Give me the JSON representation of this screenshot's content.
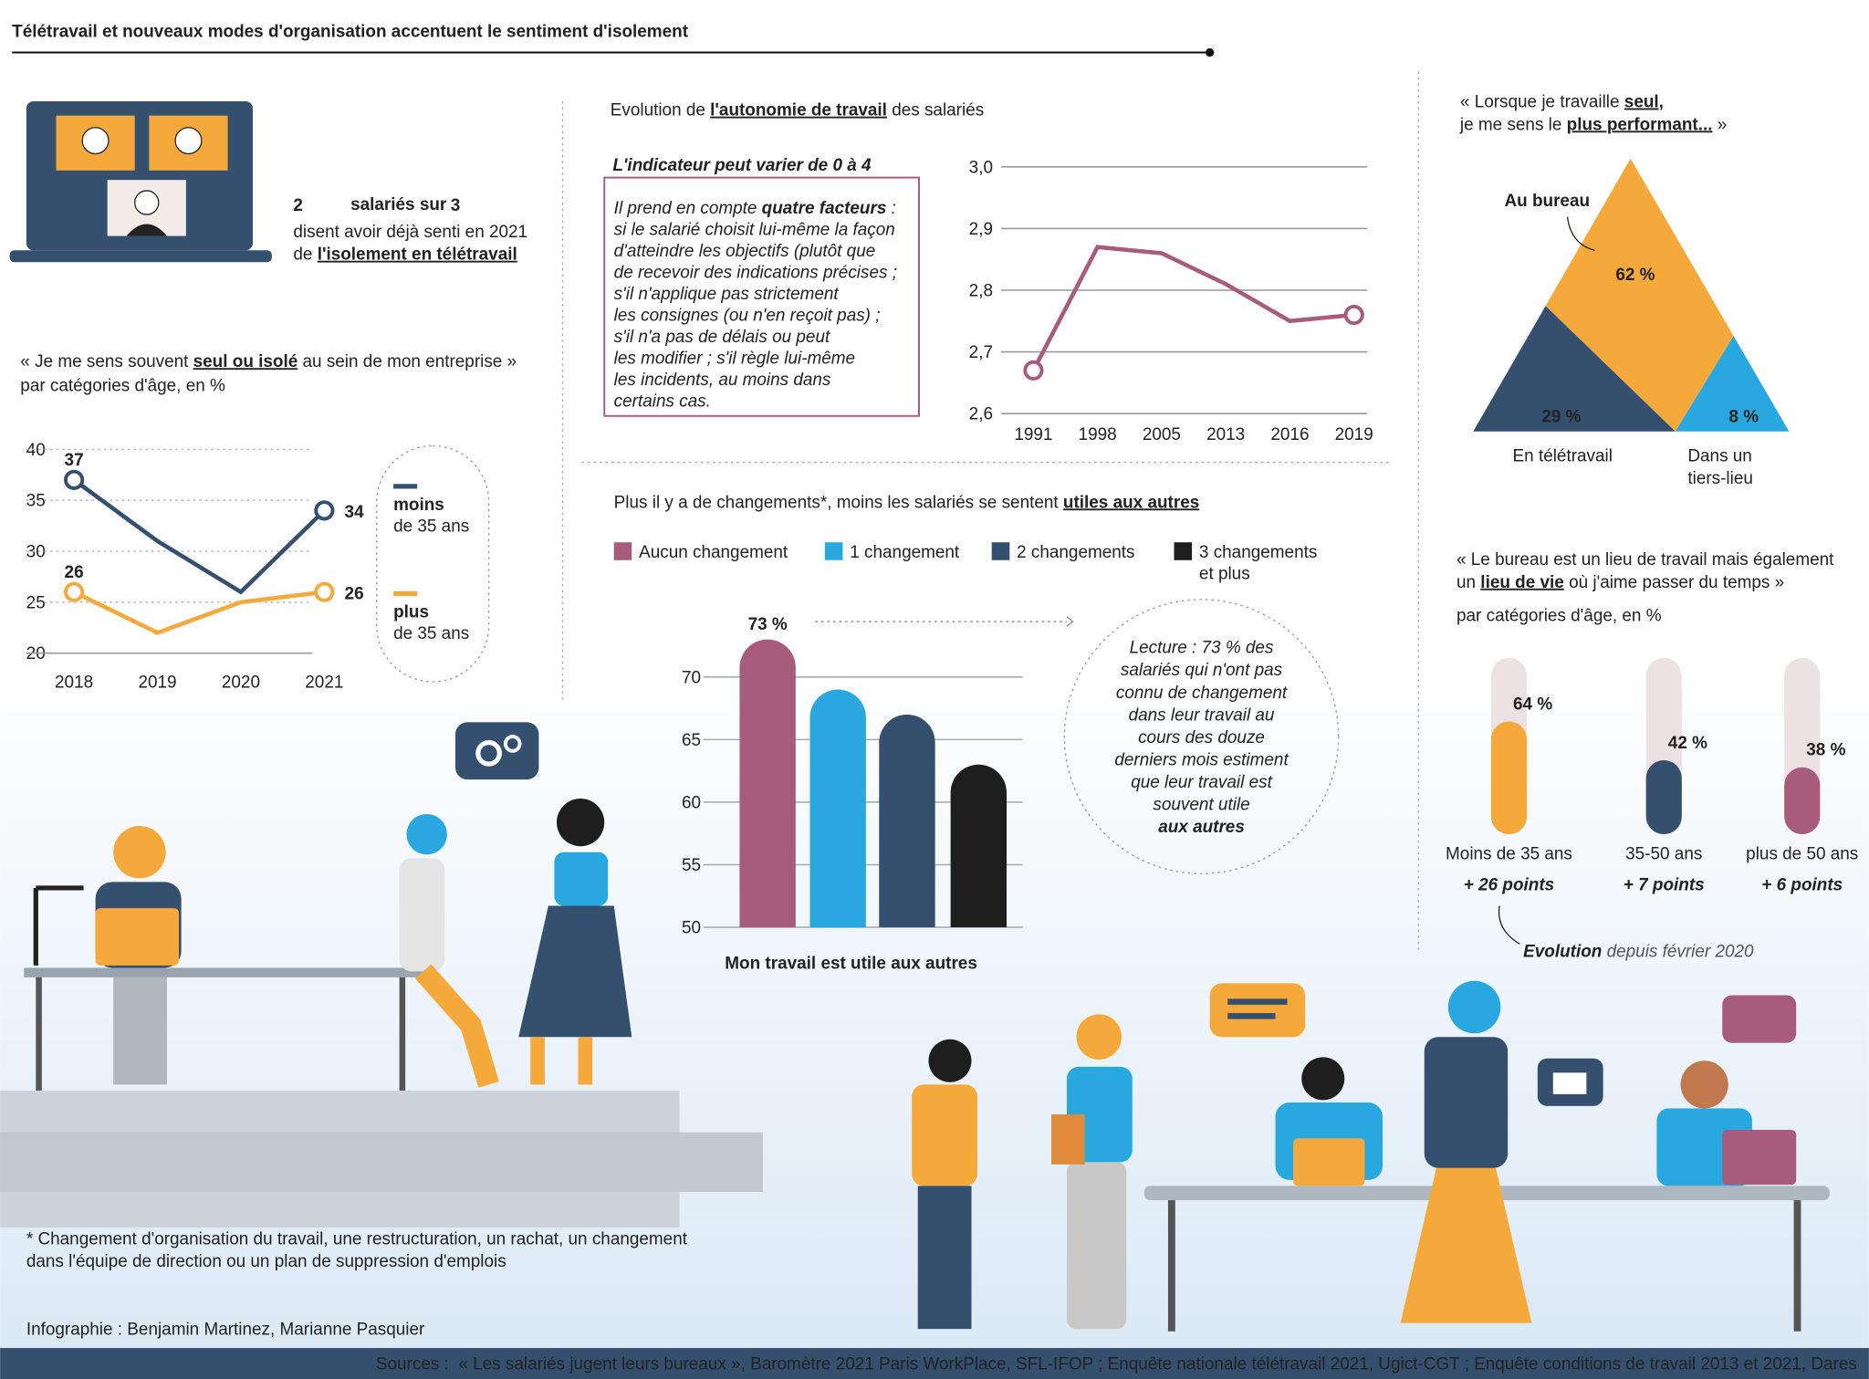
{
  "title": "Télétravail et nouveaux modes d'organisation accentuent le sentiment d'isolement",
  "stat": {
    "count": 2,
    "of_text": "salariés sur",
    "total": 3,
    "text": "disent avoir déjà senti en 2021",
    "text2": "de ",
    "highlight": "l'isolement en télétravail"
  },
  "chart_data": [
    {
      "type": "line",
      "title": [
        [
          "« Je me sens souvent ",
          "seul ou isolé",
          " au sein de mon entreprise »"
        ]
      ],
      "subtitle": "par catégories d'âge, en %",
      "categories": [
        "2018",
        "2019",
        "2020",
        "2021"
      ],
      "series": [
        {
          "name": "moins de 35 ans",
          "color": "#34506e",
          "values": [
            37,
            31,
            26,
            34
          ],
          "value_labels": [
            "37",
            null,
            null,
            "34"
          ]
        },
        {
          "name": "plus de 35 ans",
          "color": "#f5a93b",
          "values": [
            26,
            22,
            25,
            26
          ],
          "value_labels": [
            "26",
            null,
            null,
            "26"
          ]
        }
      ],
      "ylim": [
        20,
        40
      ],
      "yticks": [
        20,
        25,
        30,
        35,
        40
      ],
      "grid": true
    },
    {
      "type": "line",
      "title": [
        [
          "Evolution de ",
          "l'autonomie de travail",
          " des salariés"
        ]
      ],
      "box_title": "L'indicateur peut varier de 0 à 4",
      "box_text": [
        [
          "Il prend en compte ",
          "quatre facteurs",
          " :"
        ],
        [
          "si le salarié choisit lui-même la façon"
        ],
        [
          "d'atteindre les objectifs (plutôt que"
        ],
        [
          "de recevoir des indications précises ;"
        ],
        [
          "s'il n'applique pas strictement"
        ],
        [
          "les consignes (ou n'en reçoit pas) ;"
        ],
        [
          "s'il n'a pas de délais ou peut"
        ],
        [
          "les modifier ; s'il règle lui-même"
        ],
        [
          "les incidents, au moins dans"
        ],
        [
          "certains cas."
        ]
      ],
      "categories": [
        "1991",
        "1998",
        "2005",
        "2013",
        "2016",
        "2019"
      ],
      "values": [
        2.67,
        2.87,
        2.86,
        2.81,
        2.75,
        2.76
      ],
      "color": "#a85c7c",
      "ylim": [
        2.6,
        3.0
      ],
      "yticks": [
        {
          "value": 2.6,
          "label": "2,6"
        },
        {
          "value": 2.7,
          "label": "2,7"
        },
        {
          "value": 2.8,
          "label": "2,8"
        },
        {
          "value": 2.9,
          "label": "2,9"
        },
        {
          "value": 3.0,
          "label": "3,0"
        }
      ],
      "grid": true
    },
    {
      "type": "bar",
      "title": [
        [
          "Plus il y a de changements*, moins les salariés se sentent ",
          "utiles aux autres"
        ]
      ],
      "categories": [
        "Aucun changement",
        "1 changement",
        "2 changements",
        "3 changements et plus"
      ],
      "values": [
        73,
        69,
        67,
        63
      ],
      "value_labels": [
        "73 %",
        null,
        null,
        null
      ],
      "colors": [
        "#a85c7c",
        "#29a8e0",
        "#34506e",
        "#1e1e1e"
      ],
      "xlabel": "Mon travail est utile aux autres",
      "annotation": [
        "Lecture : 73 % des",
        "salariés qui n'ont pas",
        "connu de changement",
        "dans leur travail au",
        "cours des douze",
        "derniers mois estiment",
        "que leur travail est",
        "souvent utile",
        "aux autres"
      ],
      "ylim": [
        50,
        75
      ],
      "yticks": [
        50,
        55,
        60,
        65,
        70
      ],
      "grid": true
    },
    {
      "type": "triangle",
      "title": [
        [
          "« Lorsque je travaille ",
          "seul,"
        ],
        [
          "je me sens le ",
          "plus performant...",
          " »"
        ]
      ],
      "categories": [
        "Au bureau",
        "En télétravail",
        "Dans un tiers-lieu"
      ],
      "values": [
        62,
        29,
        8
      ],
      "value_labels": [
        "62 %",
        "29 %",
        "8 %"
      ],
      "colors": [
        "#f5a93b",
        "#34506e",
        "#29a8e0"
      ]
    },
    {
      "type": "progress",
      "title": [
        [
          "« Le bureau est un lieu de travail mais également"
        ],
        [
          "un ",
          "lieu de vie",
          " où j'aime passer du temps »"
        ]
      ],
      "subtitle": "par catégories d'âge, en %",
      "categories": [
        "Moins de 35 ans",
        "35-50 ans",
        "plus de 50 ans"
      ],
      "values": [
        64,
        42,
        38
      ],
      "value_labels": [
        "64 %",
        "42 %",
        "38 %"
      ],
      "colors": [
        "#f5a93b",
        "#34506e",
        "#a85c7c"
      ],
      "annotations": [
        "+ 26 points",
        "+ 7 points",
        "+ 6 points"
      ],
      "note": [
        "Evolution",
        " depuis février 2020"
      ],
      "ylim": [
        0,
        100
      ]
    }
  ],
  "footnote": [
    "* Changement d'organisation du travail, une restructuration, un rachat, un changement",
    "dans l'équipe de direction ou un plan de suppression d'emplois"
  ],
  "credits": "Infographie : Benjamin Martinez, Marianne Pasquier",
  "sources": "Sources :  « Les salariés jugent leurs bureaux », Baromètre 2021 Paris WorkPlace, SFL-IFOP ; Enquête nationale télétravail 2021, Ugict-CGT ; Enquête conditions de travail 2013 et 2021, Dares"
}
